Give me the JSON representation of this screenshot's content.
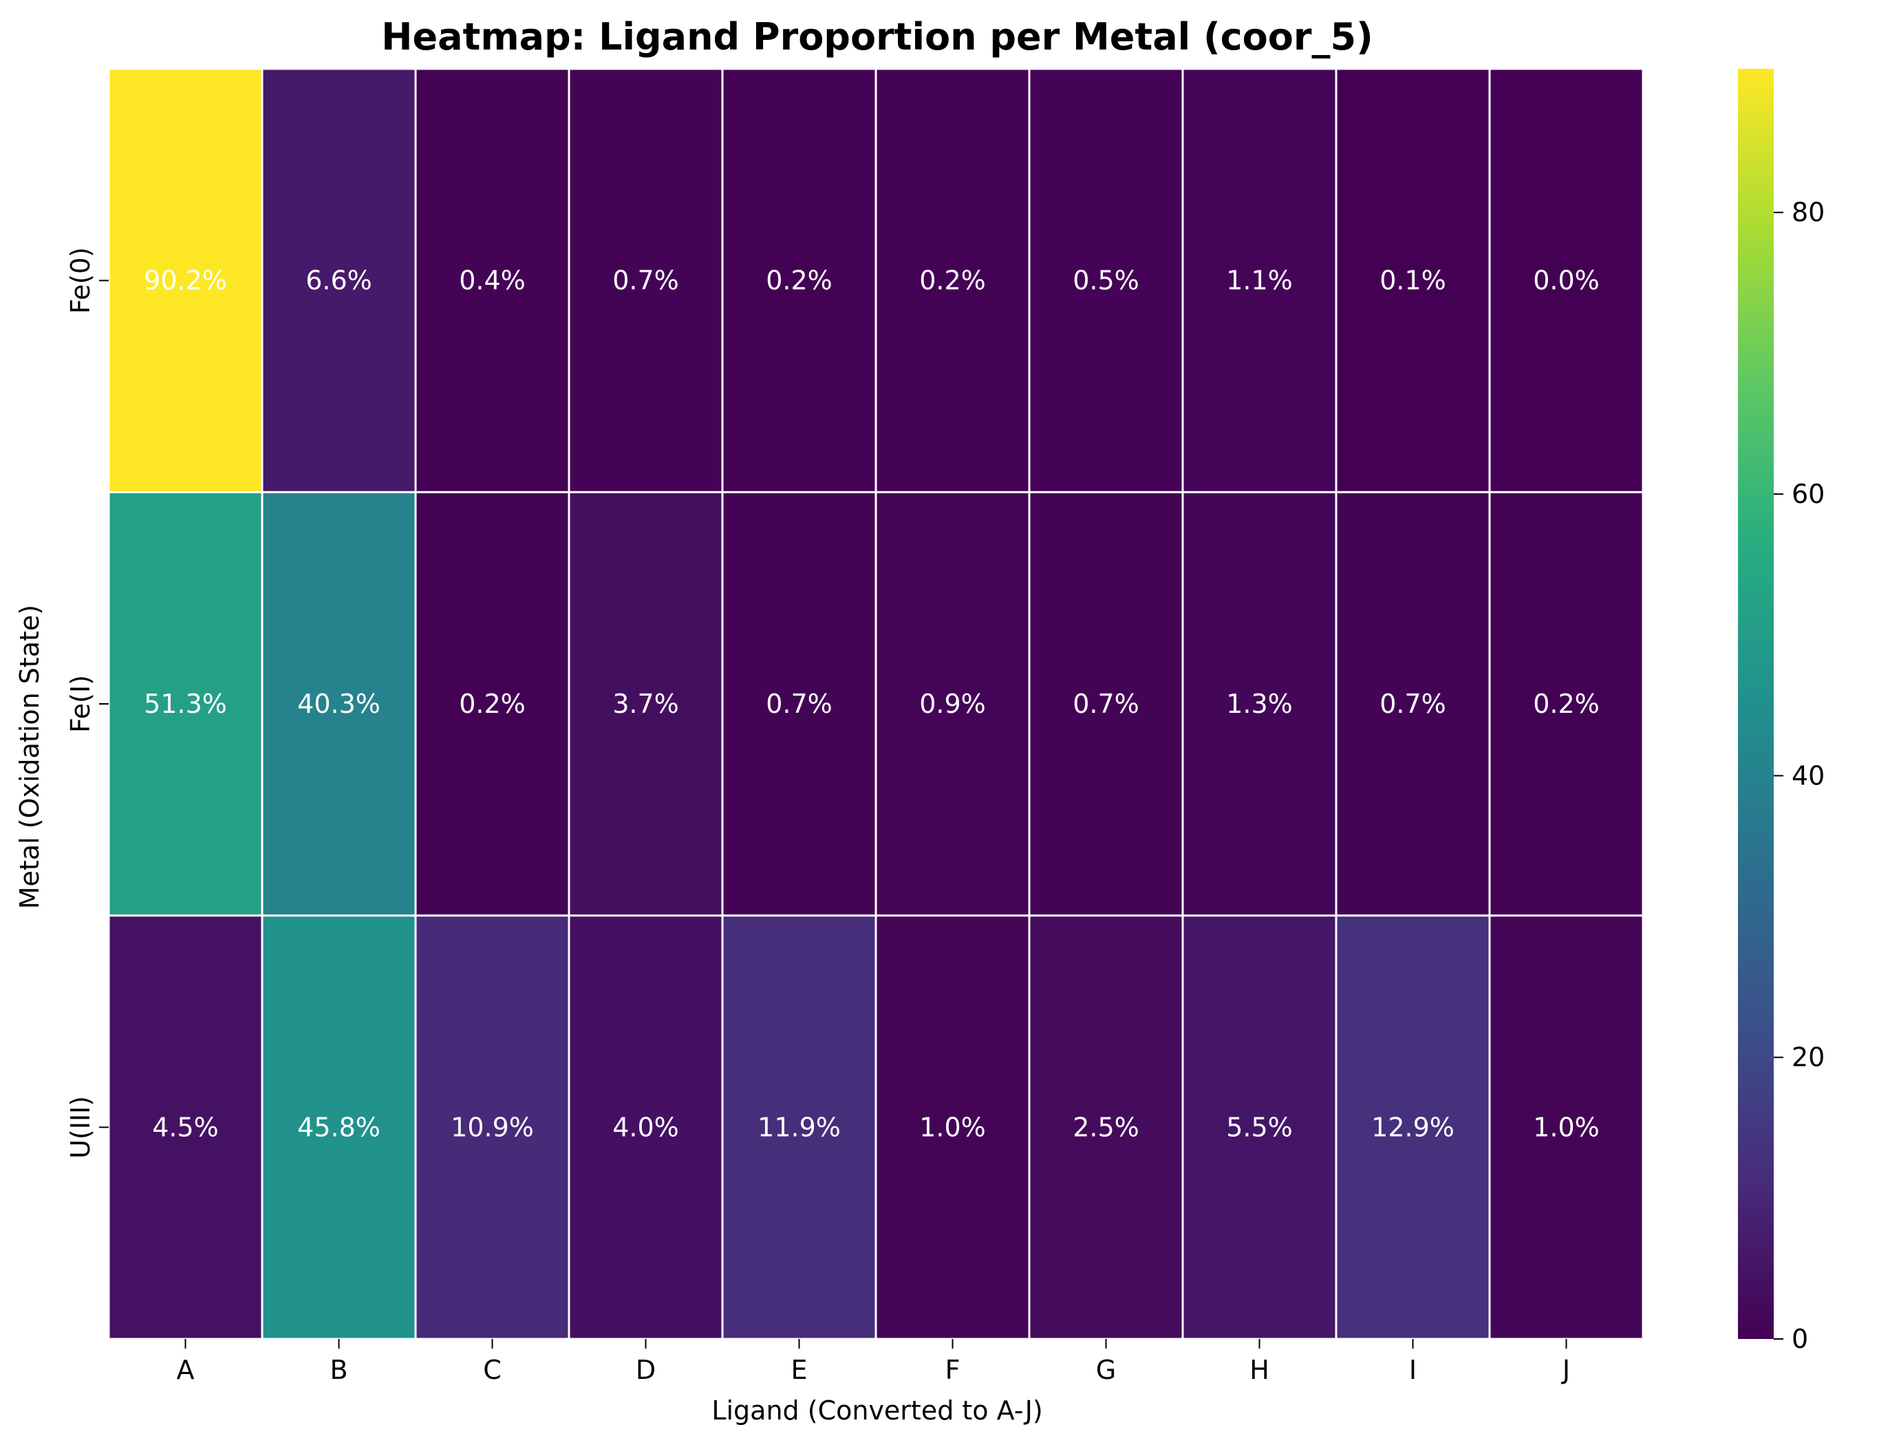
{
  "chart_data": {
    "type": "heatmap",
    "title": "Heatmap: Ligand Proportion per Metal (coor_5)",
    "xlabel": "Ligand (Converted to A-J)",
    "ylabel": "Metal (Oxidation State)",
    "x_categories": [
      "A",
      "B",
      "C",
      "D",
      "E",
      "F",
      "G",
      "H",
      "I",
      "J"
    ],
    "y_categories": [
      "Fe(0)",
      "Fe(I)",
      "U(III)"
    ],
    "values": [
      [
        90.2,
        6.6,
        0.4,
        0.7,
        0.2,
        0.2,
        0.5,
        1.1,
        0.1,
        0.0
      ],
      [
        51.3,
        40.3,
        0.2,
        3.7,
        0.7,
        0.9,
        0.7,
        1.3,
        0.7,
        0.2
      ],
      [
        4.5,
        45.8,
        10.9,
        4.0,
        11.9,
        1.0,
        2.5,
        5.5,
        12.9,
        1.0
      ]
    ],
    "labels": [
      [
        "90.2%",
        "6.6%",
        "0.4%",
        "0.7%",
        "0.2%",
        "0.2%",
        "0.5%",
        "1.1%",
        "0.1%",
        "0.0%"
      ],
      [
        "51.3%",
        "40.3%",
        "0.2%",
        "3.7%",
        "0.7%",
        "0.9%",
        "0.7%",
        "1.3%",
        "0.7%",
        "0.2%"
      ],
      [
        "4.5%",
        "45.8%",
        "10.9%",
        "4.0%",
        "11.9%",
        "1.0%",
        "2.5%",
        "5.5%",
        "12.9%",
        "1.0%"
      ]
    ],
    "colormap": "viridis",
    "color_range": [
      0,
      90.2
    ],
    "colorbar_ticks": [
      0,
      20,
      40,
      60,
      80
    ],
    "cell_border_color": "#ffffff",
    "annotation_color": "#ffffff",
    "grid": false
  }
}
